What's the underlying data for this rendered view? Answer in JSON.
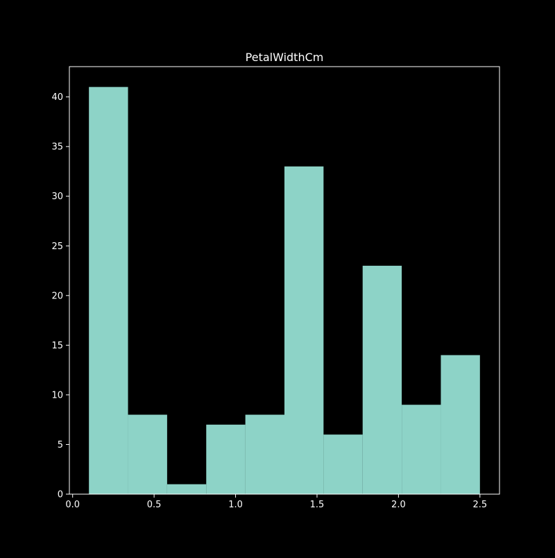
{
  "chart_data": {
    "type": "histogram",
    "title": "PetalWidthCm",
    "xlabel": "",
    "ylabel": "",
    "bin_edges": [
      0.1,
      0.34,
      0.58,
      0.82,
      1.06,
      1.3,
      1.54,
      1.78,
      2.02,
      2.26,
      2.5
    ],
    "counts": [
      41,
      8,
      1,
      7,
      8,
      33,
      6,
      23,
      9,
      14
    ],
    "xlim": [
      -0.02,
      2.62
    ],
    "ylim": [
      0,
      43.05
    ],
    "x_ticks": [
      0.0,
      0.5,
      1.0,
      1.5,
      2.0,
      2.5
    ],
    "x_tick_labels": [
      "0.0",
      "0.5",
      "1.0",
      "1.5",
      "2.0",
      "2.5"
    ],
    "y_ticks": [
      0,
      5,
      10,
      15,
      20,
      25,
      30,
      35,
      40
    ],
    "y_tick_labels": [
      "0",
      "5",
      "10",
      "15",
      "20",
      "25",
      "30",
      "35",
      "40"
    ],
    "grid": false,
    "colors": {
      "background": "#000000",
      "bar": "#8dd3c7",
      "axes": "#ffffff",
      "text": "#ffffff"
    }
  }
}
